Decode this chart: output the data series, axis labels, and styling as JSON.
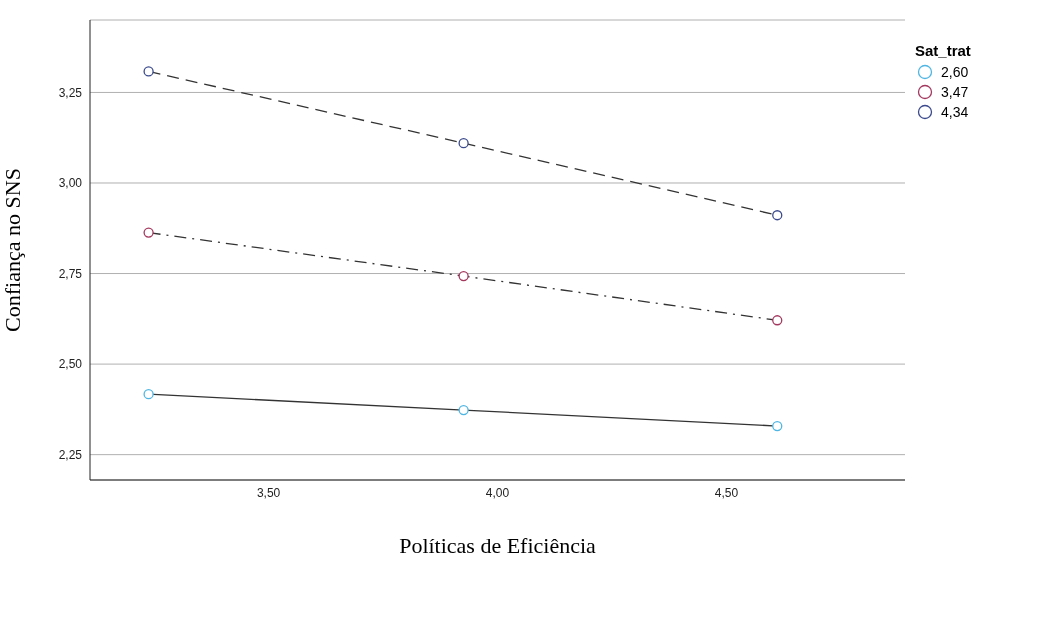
{
  "chart_data": {
    "type": "line",
    "xlabel": "Políticas de Eficiência",
    "ylabel": "Confiança no SNS",
    "legend_title": "Sat_trat",
    "x": [
      3.238,
      3.926,
      4.611
    ],
    "series": [
      {
        "name": "2,60",
        "color": "#4fb6e3",
        "line_style": "solid",
        "values": [
          2.417,
          2.373,
          2.329
        ]
      },
      {
        "name": "3,47",
        "color": "#a3385e",
        "line_style": "dashdot",
        "values": [
          2.863,
          2.743,
          2.621
        ]
      },
      {
        "name": "4,34",
        "color": "#3b4a8c",
        "line_style": "dashed",
        "values": [
          3.308,
          3.11,
          2.911
        ]
      }
    ],
    "xlim": [
      3.11,
      4.89
    ],
    "xticks": [
      {
        "value": 3.5,
        "label": "3,50"
      },
      {
        "value": 4.0,
        "label": "4,00"
      },
      {
        "value": 4.5,
        "label": "4,50"
      }
    ],
    "ylim": [
      2.18,
      3.45
    ],
    "yticks": [
      {
        "value": 2.25,
        "label": "2,25"
      },
      {
        "value": 2.5,
        "label": "2,50"
      },
      {
        "value": 2.75,
        "label": "2,75"
      },
      {
        "value": 3.0,
        "label": "3,00"
      },
      {
        "value": 3.25,
        "label": "3,25"
      }
    ],
    "grid": "y",
    "legend": "top right",
    "marker": "circle"
  }
}
